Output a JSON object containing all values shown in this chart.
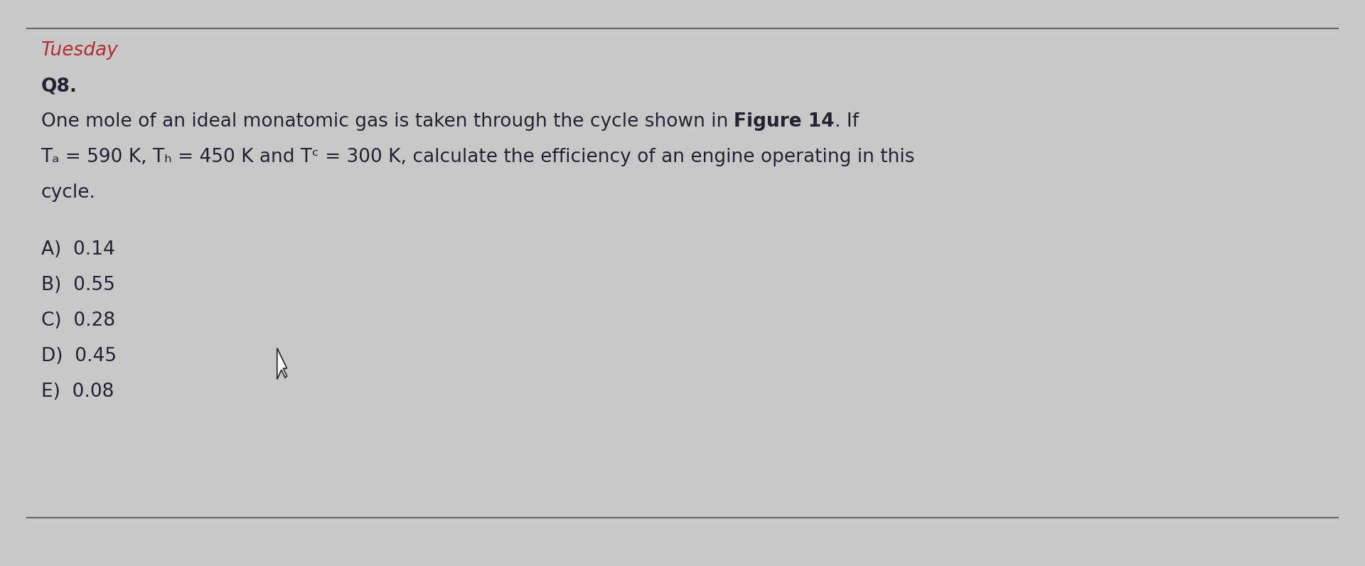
{
  "background_color": "#c8c8c8",
  "top_line_color": "#666666",
  "bottom_line_color": "#666666",
  "tuesday_color": "#b03030",
  "tuesday_text": "Tuesday",
  "tuesday_fontsize": 19,
  "q8_text": "Q8.",
  "q8_fontsize": 19,
  "body_line1_normal": "One mole of an ideal monatomic gas is taken through the cycle shown in ",
  "body_bold1": "Figure 14",
  "body_line1_end": ". If",
  "body_line2": "Tₐ = 590 K, Tₕ = 450 K and Tᶜ = 300 K, calculate the efficiency of an engine operating in this",
  "body_line3": "cycle.",
  "body_fontsize": 19,
  "choices": [
    "A)  0.14",
    "B)  0.55",
    "C)  0.28",
    "D)  0.45",
    "E)  0.08"
  ],
  "choices_fontsize": 19,
  "text_color": "#222233",
  "fig_width": 19.2,
  "fig_height": 7.96,
  "dpi": 100
}
